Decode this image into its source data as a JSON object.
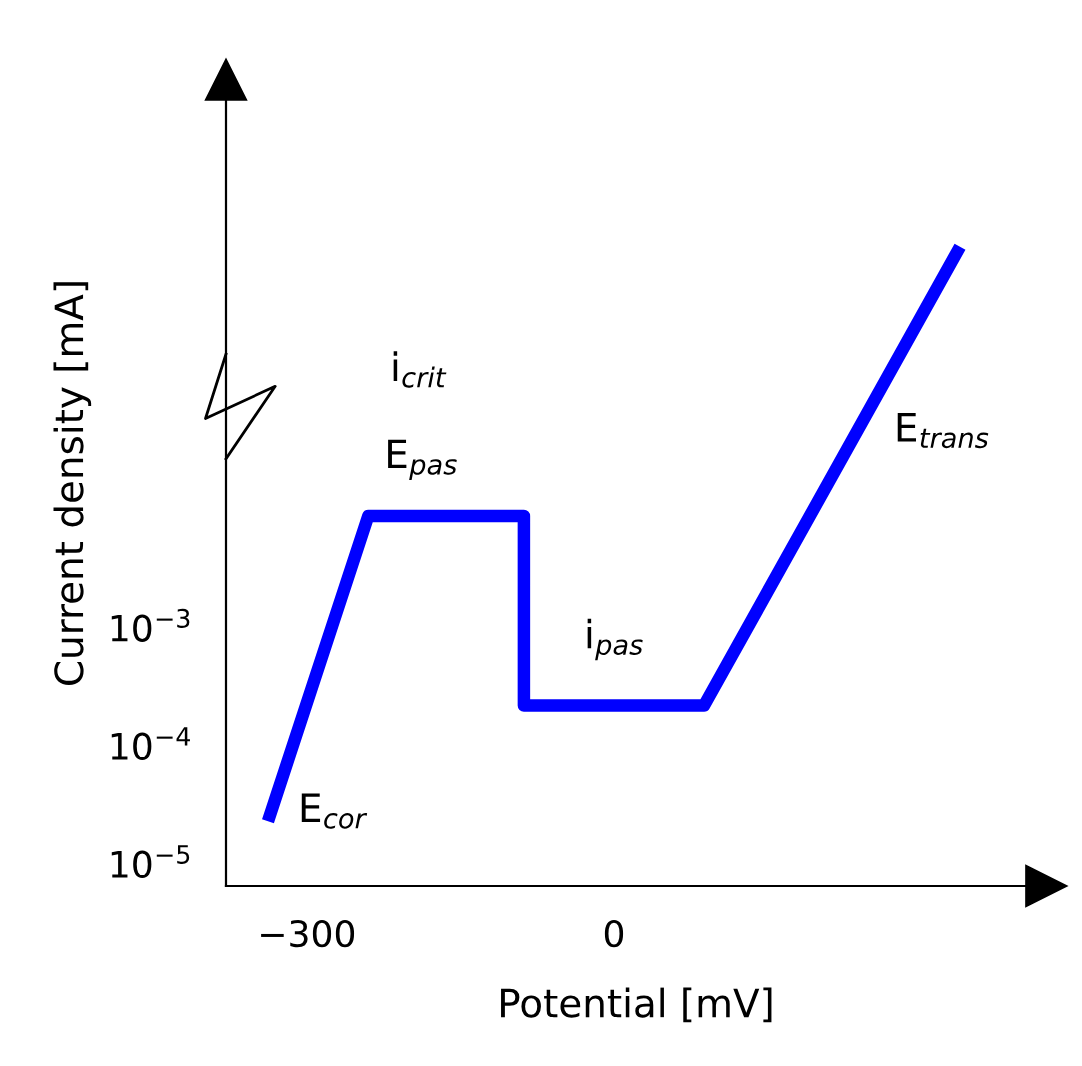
{
  "chart_data": {
    "type": "line",
    "xlabel": "Potential [mV]",
    "ylabel": "Current density [mA]",
    "log": "y",
    "x": [
      -338,
      -240,
      -88,
      -88,
      88,
      338
    ],
    "series": [
      {
        "color": "#0000ff",
        "values": [
          2.3e-05,
          0.0089,
          0.0089,
          0.00022,
          0.00022,
          1.7
        ]
      }
    ],
    "xlim": [
      -379,
      422
    ],
    "ylim": [
      6.5e-06,
      44
    ],
    "xticks": [
      -300,
      0
    ],
    "yticks": [
      {
        "value": 1e-05,
        "label": "10$^{−5}$"
      },
      {
        "value": 0.0001,
        "label": "10$^{−4}$"
      },
      {
        "value": 0.001,
        "label": "10$^{−3}$"
      }
    ],
    "grid": false,
    "legend": false,
    "marker": "none",
    "line_style": "solid",
    "annotations": [
      {
        "text": "E$_{cor}$",
        "x": -338,
        "y": 2.3e-05
      },
      "i$_{crit}$",
      {
        "text": "E$_{pas}$",
        "x": -240,
        "y": 0.0089
      },
      {
        "text": "i$_{pas}$",
        "x": 0,
        "y": 0.00022
      },
      {
        "text": "E$_{trans}$",
        "x": 250,
        "y": 0.072
      }
    ]
  }
}
